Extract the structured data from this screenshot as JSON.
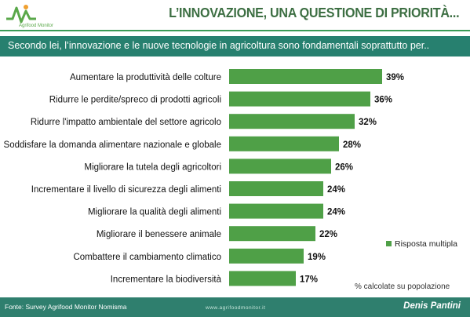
{
  "header": {
    "logo_text": "Agrifood Monitor",
    "title": "L’INNOVAZIONE, UNA QUESTIONE DI PRIORITÀ..."
  },
  "question": "Secondo lei, l’innovazione e le nuove tecnologie in agricoltura sono fondamentali soprattutto per..",
  "chart_data": {
    "type": "bar",
    "orientation": "horizontal",
    "categories": [
      "Aumentare la produttività delle colture",
      "Ridurre le perdite/spreco di prodotti agricoli",
      "Ridurre l'impatto ambientale del settore agricolo",
      "Soddisfare la domanda alimentare nazionale e globale",
      "Migliorare la tutela degli agricoltori",
      "Incrementare il livello di sicurezza degli alimenti",
      "Migliorare la qualità degli alimenti",
      "Migliorare il benessere animale",
      "Combattere il cambiamento climatico",
      "Incrementare la biodiversità"
    ],
    "series": [
      {
        "name": "Risposta multipla",
        "values": [
          39,
          36,
          32,
          28,
          26,
          24,
          24,
          22,
          19,
          17
        ]
      }
    ],
    "value_labels": [
      "39%",
      "36%",
      "32%",
      "28%",
      "26%",
      "24%",
      "24%",
      "22%",
      "19%",
      "17%"
    ],
    "xlim": [
      0,
      40
    ],
    "grid": false,
    "legend_position": "right",
    "bar_color": "#4fa047"
  },
  "legend_label": "Risposta multipla",
  "note": "% calcolate su popolazione",
  "footer": {
    "source": "Fonte: Survey Agrifood Monitor Nomisma",
    "website": "www.agrifoodmonitor.it",
    "author": "Denis Pantini"
  }
}
